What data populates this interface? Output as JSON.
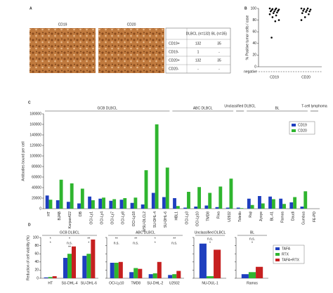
{
  "panel_a": {
    "label": "A",
    "images": [
      "CD19",
      "CD20"
    ],
    "table": {
      "header": [
        "DLBCL (n=132)",
        "BL (n=35)"
      ],
      "rows": [
        [
          "CD19+",
          "132",
          "35"
        ],
        [
          "CD19-",
          "1",
          "-"
        ],
        [
          "CD20+",
          "132",
          "35"
        ],
        [
          "CD20-",
          "-",
          "-"
        ]
      ]
    }
  },
  "chart_data": [
    {
      "type": "strip",
      "label": "B",
      "ylabel": "% Positive tumor cells / case",
      "annotation": "negative",
      "categories": [
        "CD19",
        "CD20"
      ],
      "color": "#000000",
      "values": [
        [
          100,
          100,
          99,
          98,
          98,
          97,
          96,
          95,
          95,
          93,
          92,
          90,
          88,
          85,
          80,
          78,
          50
        ],
        [
          100,
          100,
          99,
          98,
          97,
          96,
          95,
          94,
          92,
          90,
          85,
          80
        ]
      ],
      "ylim": [
        0,
        100
      ],
      "yticks": [
        0,
        20,
        40,
        60,
        80,
        100
      ]
    },
    {
      "type": "bar",
      "label": "C",
      "ylabel": "Antibodies bound per cell",
      "legend": "upper right",
      "groups": [
        "GCB DLBCL",
        "ABC DLBCL",
        "Unclassified DLBCL",
        "BL",
        "T-cell lymphoma"
      ],
      "categories": [
        "HT",
        "BJAB",
        "Karpas422",
        "DB",
        "OCI-Ly1",
        "OCI-Ly4",
        "OCI-Ly7",
        "OCI-Ly8",
        "OCI-Ly18",
        "WSU-DLCL2",
        "SU-DHL-4",
        "SU-DHL-6",
        "HBL1",
        "OCI-Ly3",
        "OCI-Ly10",
        "TMD8",
        "Riva",
        "U2932",
        "Toledo",
        "Raji",
        "Jiyoye",
        "BL-41",
        "Ramos",
        "Daudi",
        "Gumbus",
        "FE-PD"
      ],
      "series": [
        {
          "name": "CD19",
          "color": "#1f3fbf",
          "values": [
            25000,
            16000,
            13000,
            10000,
            23000,
            19000,
            15000,
            17000,
            11000,
            8000,
            30000,
            22000,
            20000,
            2000,
            4000,
            6000,
            3000,
            2000,
            2000,
            19000,
            24000,
            23000,
            19000,
            12000,
            4000,
            0
          ]
        },
        {
          "name": "CD20",
          "color": "#2fb52f",
          "values": [
            17000,
            55000,
            48000,
            38000,
            16000,
            21000,
            18000,
            20000,
            21000,
            73000,
            160000,
            78000,
            5000,
            32000,
            41000,
            30000,
            42000,
            57000,
            1000,
            7000,
            10000,
            18000,
            9000,
            22000,
            33000,
            0
          ]
        }
      ],
      "ylim": [
        0,
        180000
      ],
      "yticks": [
        0,
        20000,
        40000,
        60000,
        80000,
        100000,
        120000,
        140000,
        160000,
        180000
      ]
    },
    {
      "type": "bar",
      "label": "D",
      "title": "GCB DLBCL",
      "ylabel": "Reduction of cell viability (%)",
      "categories": [
        "HT",
        "SU-DHL-4",
        "SU-DHL-6"
      ],
      "annotations": [
        [
          "*",
          "*"
        ],
        [
          "*",
          "n.s.",
          "**"
        ],
        [
          "**",
          "*"
        ]
      ],
      "series": [
        {
          "name": "TAFA",
          "color": "#1f3fbf",
          "values": [
            2,
            50,
            55
          ]
        },
        {
          "name": "RTX",
          "color": "#2fb52f",
          "values": [
            3,
            60,
            60
          ]
        },
        {
          "name": "TAFA+RTX",
          "color": "#c62020",
          "values": [
            5,
            78,
            95
          ]
        }
      ],
      "ylim": [
        0,
        100
      ],
      "yticks": [
        0,
        20,
        40,
        60,
        80,
        100
      ]
    },
    {
      "type": "bar",
      "title": "ABC DLBCL",
      "categories": [
        "OCI-Ly10",
        "TMD8",
        "SU-DHL-2",
        "U2932"
      ],
      "annotations": [
        [
          "**",
          "n.s."
        ],
        [
          "**",
          "n.s."
        ],
        [
          "*",
          "*"
        ],
        [
          "**",
          "n.s."
        ]
      ],
      "series": [
        {
          "name": "TAFA",
          "color": "#1f3fbf",
          "values": [
            38,
            15,
            10,
            8
          ]
        },
        {
          "name": "RTX",
          "color": "#2fb52f",
          "values": [
            38,
            25,
            12,
            10
          ]
        },
        {
          "name": "TAFA+RTX",
          "color": "#c62020",
          "values": [
            40,
            23,
            40,
            18
          ]
        }
      ],
      "ylim": [
        0,
        100
      ],
      "yticks": [
        0,
        20,
        40,
        60,
        80,
        100
      ]
    },
    {
      "type": "bar",
      "title": "Unclassified DLBCL",
      "categories": [
        "NU-DUL-1"
      ],
      "annotations": [
        [
          "n.s.",
          "*"
        ]
      ],
      "series": [
        {
          "name": "TAFA",
          "color": "#1f3fbf",
          "values": [
            85
          ]
        },
        {
          "name": "RTX",
          "color": "#2fb52f",
          "values": [
            5
          ]
        },
        {
          "name": "TAFA+RTX",
          "color": "#c62020",
          "values": [
            70
          ]
        }
      ],
      "ylim": [
        0,
        100
      ],
      "yticks": [
        0,
        20,
        40,
        60,
        80,
        100
      ]
    },
    {
      "type": "bar",
      "title": "BL",
      "categories": [
        "Ramos"
      ],
      "legend": "right",
      "annotations": [
        [
          "n.s.",
          "*"
        ]
      ],
      "series": [
        {
          "name": "TAFA",
          "color": "#1f3fbf",
          "values": [
            10
          ]
        },
        {
          "name": "RTX",
          "color": "#2fb52f",
          "values": [
            15
          ]
        },
        {
          "name": "TAFA+RTX",
          "color": "#c62020",
          "values": [
            28
          ]
        }
      ],
      "ylim": [
        0,
        100
      ],
      "yticks": [
        0,
        20,
        40,
        60,
        80,
        100
      ]
    }
  ]
}
